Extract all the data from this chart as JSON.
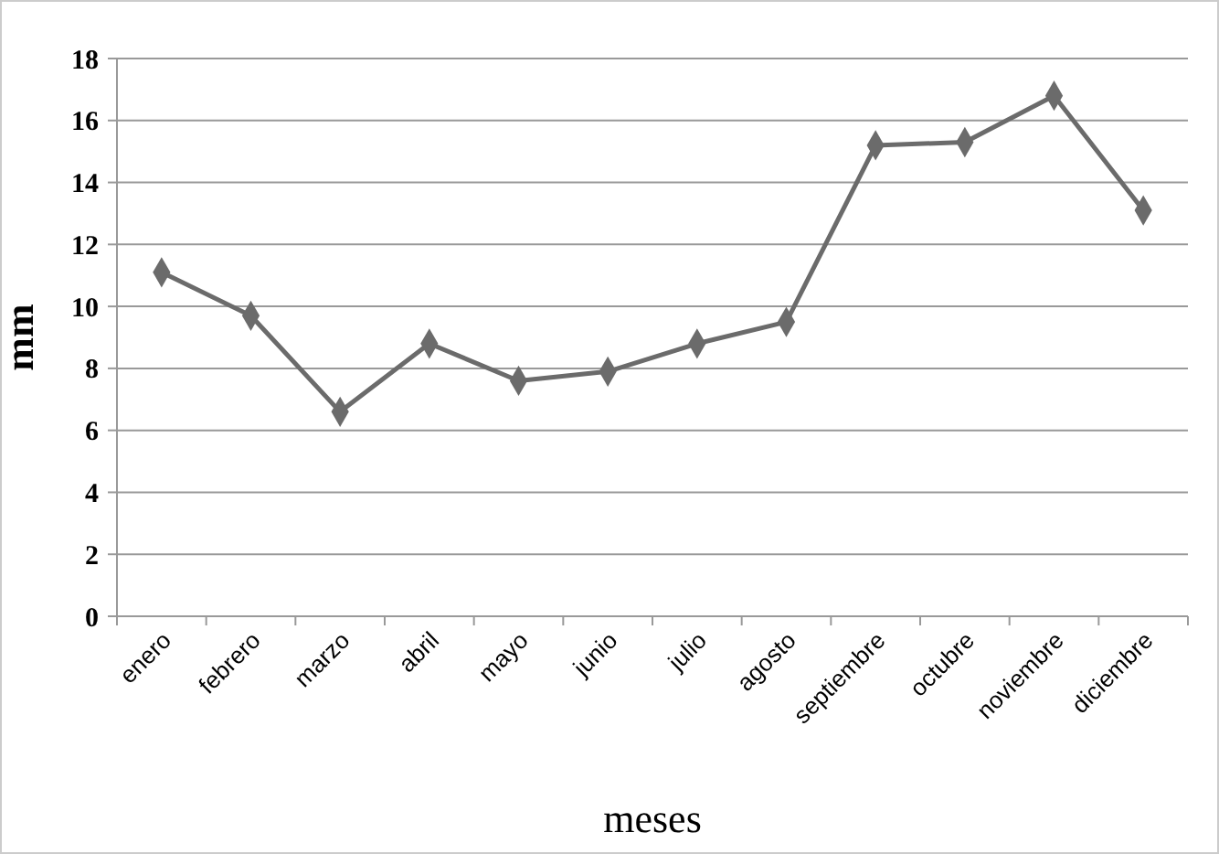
{
  "chart_data": {
    "type": "line",
    "xlabel": "meses",
    "ylabel": "mm",
    "categories": [
      "enero",
      "febrero",
      "marzo",
      "abril",
      "mayo",
      "junio",
      "julio",
      "agosto",
      "septiembre",
      "octubre",
      "noviembre",
      "diciembre"
    ],
    "series": [
      {
        "color": "#6b6b6b",
        "values": [
          11.1,
          9.7,
          6.6,
          8.8,
          7.6,
          7.9,
          8.8,
          9.5,
          15.2,
          15.3,
          16.8,
          13.1
        ]
      }
    ],
    "ylim": [
      0,
      18
    ],
    "yticks": [
      0,
      2,
      4,
      6,
      8,
      10,
      12,
      14,
      16,
      18
    ],
    "grid": "y",
    "marker": "diamond"
  }
}
